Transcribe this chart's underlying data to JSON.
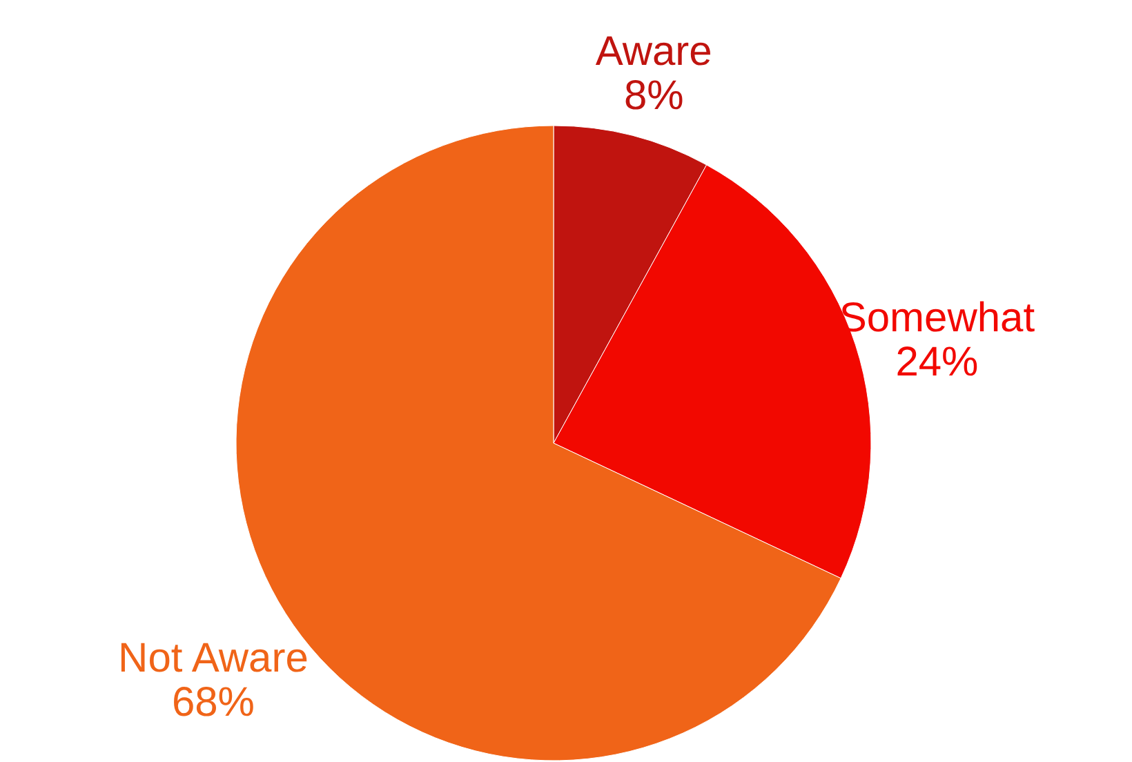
{
  "chart_data": {
    "type": "pie",
    "categories": [
      "Aware",
      "Somewhat",
      "Not Aware"
    ],
    "values": [
      8,
      24,
      68
    ],
    "value_labels": [
      "8%",
      "24%",
      "68%"
    ],
    "colors": [
      "#c0140f",
      "#f20800",
      "#f06418"
    ]
  }
}
